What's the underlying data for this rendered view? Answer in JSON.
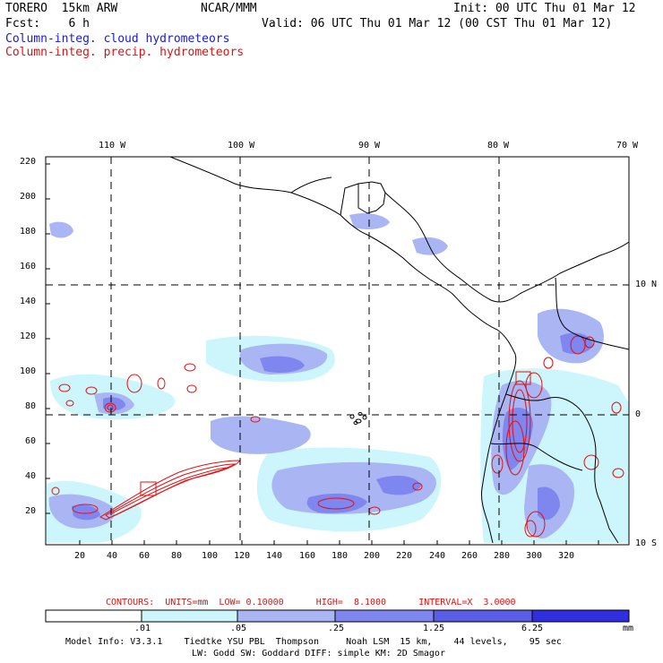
{
  "header": {
    "model": "TORERO  15km ARW",
    "org": "NCAR/MMM",
    "init": "Init: 00 UTC Thu 01 Mar 12",
    "fcst": "Fcst:    6 h",
    "valid": "Valid: 06 UTC Thu 01 Mar 12 (00 CST Thu 01 Mar 12)",
    "field1": "Column-integ. cloud hydrometeors",
    "field2": "Column-integ. precip. hydrometeors"
  },
  "colors": {
    "cloud_light": "#ccf6fb",
    "cloud_mid": "#a9b6f3",
    "cloud_dark": "#7f86f0",
    "cloud_deeper": "#5a5ee6",
    "cloud_deepest": "#2f2fe0",
    "precip": "#e01010",
    "field1": "#1a1ad6",
    "field2": "#e01010"
  },
  "axes": {
    "x_ticks": [
      "20",
      "40",
      "60",
      "80",
      "100",
      "120",
      "140",
      "160",
      "180",
      "200",
      "220",
      "240",
      "260",
      "280",
      "300",
      "320"
    ],
    "y_ticks": [
      "20",
      "40",
      "60",
      "80",
      "100",
      "120",
      "140",
      "160",
      "180",
      "200",
      "220"
    ],
    "lon_labels": [
      "110 W",
      "100 W",
      "90 W",
      "80 W",
      "70 W"
    ],
    "lat_labels": [
      "10 N",
      "0",
      "10 S"
    ]
  },
  "contours": {
    "text": "CONTOURS:  UNITS=mm  LOW= 0.10000      HIGH=  8.1000      INTERVAL=X  3.0000"
  },
  "colorbar": {
    "labels": [
      ".01",
      ".05",
      ".25",
      "1.25",
      "6.25"
    ],
    "unit": "mm"
  },
  "footer": {
    "line1": "Model Info: V3.3.1    Tiedtke YSU PBL  Thompson     Noah LSM  15 km,    44 levels,    95 sec",
    "line2": "LW: Godd SW: Goddard DIFF: simple KM: 2D Smagor"
  }
}
